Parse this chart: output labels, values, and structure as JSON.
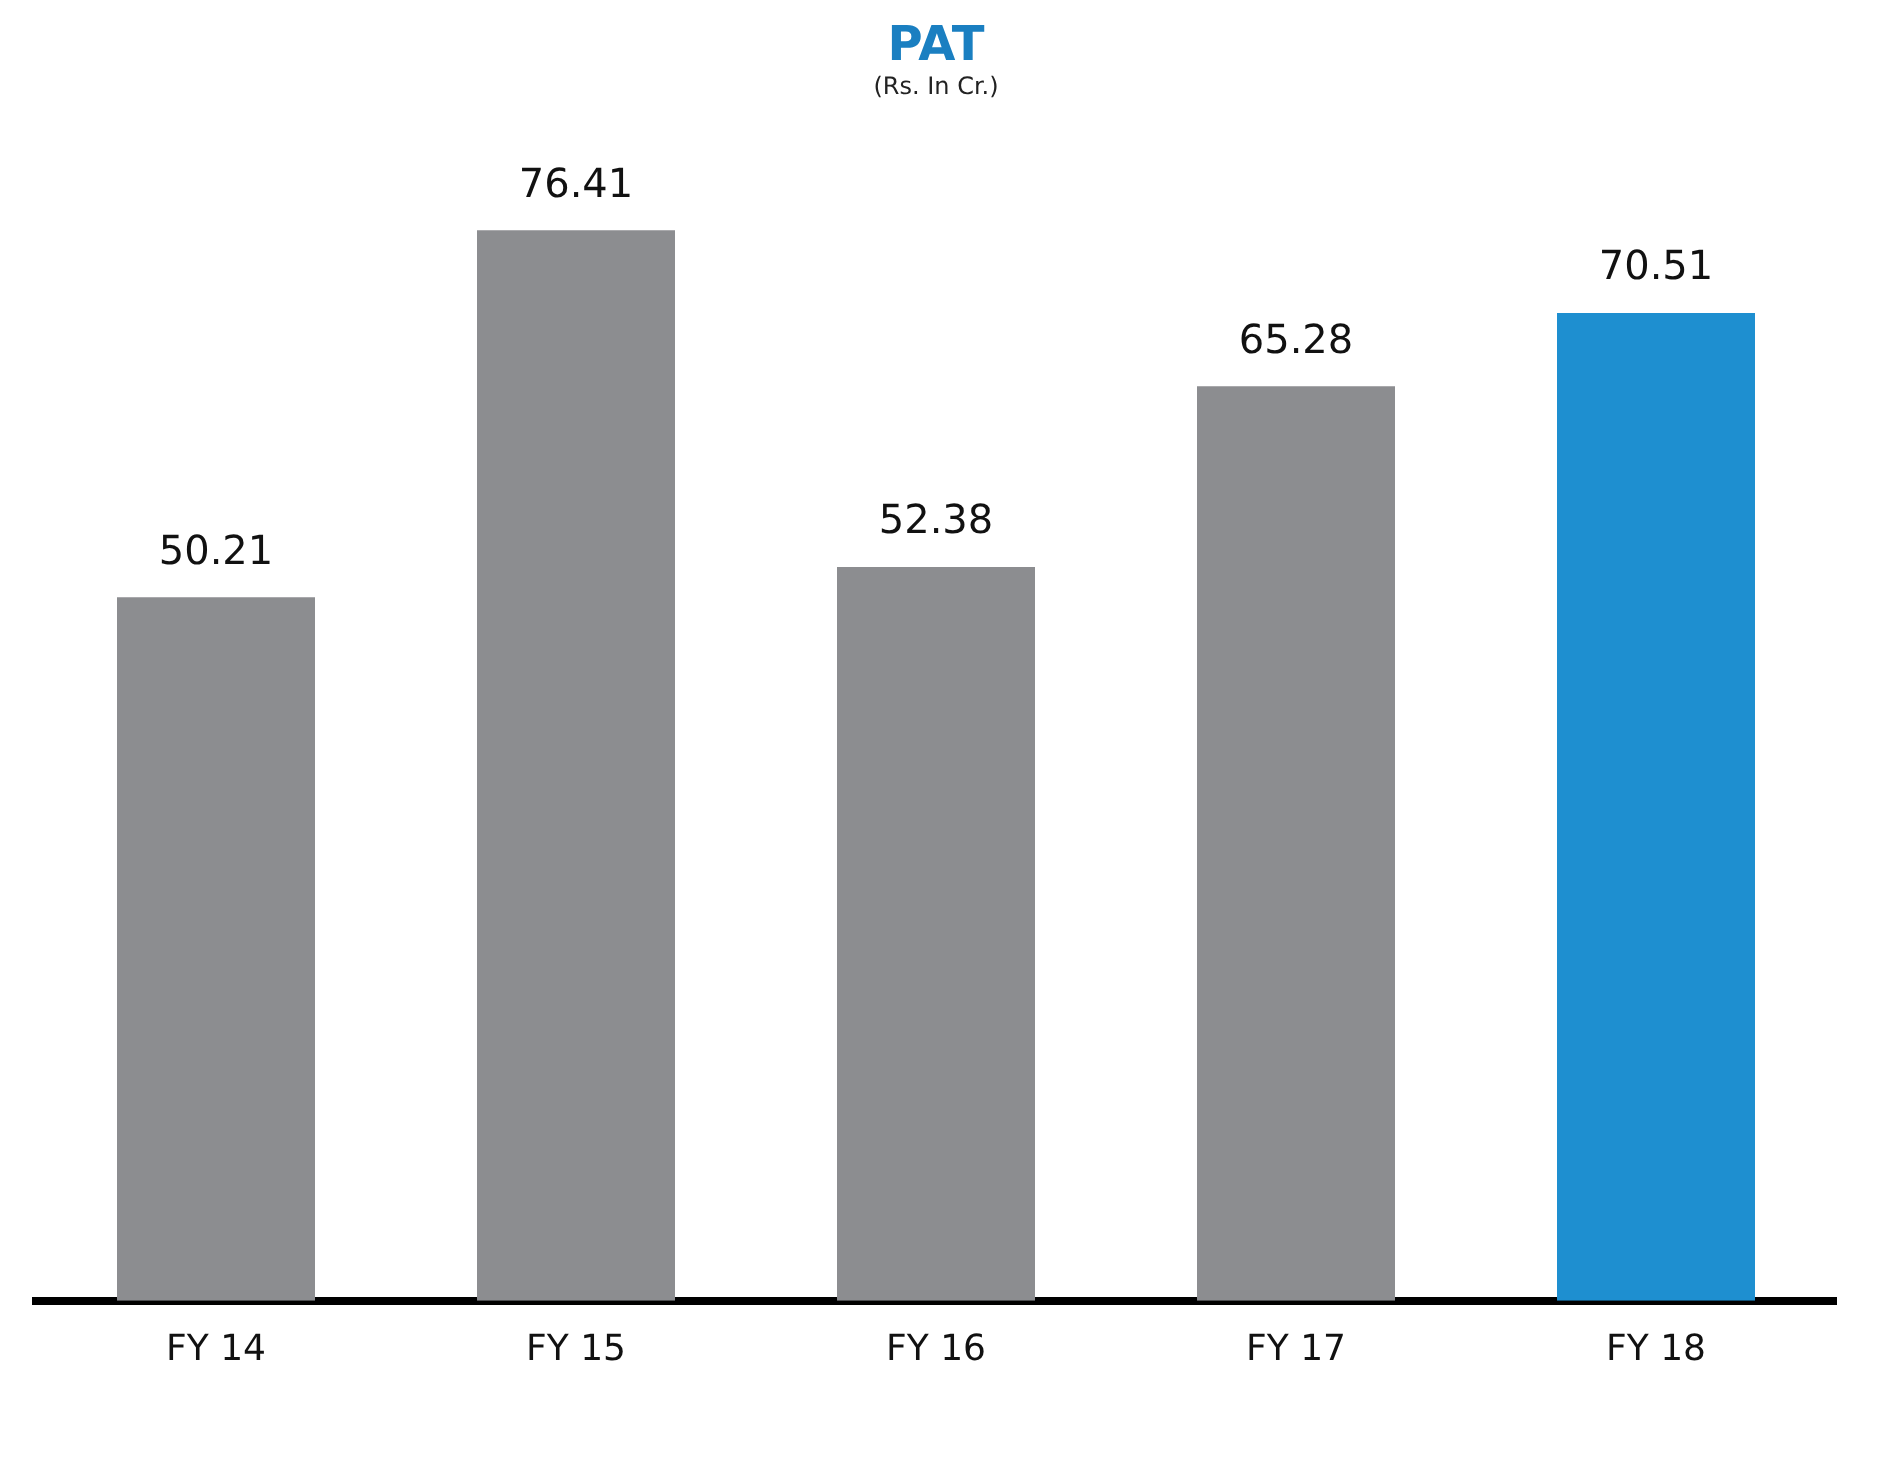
{
  "chart_data": {
    "type": "bar",
    "title": "PAT",
    "subtitle": "(Rs. In Cr.)",
    "categories": [
      "FY 14",
      "FY 15",
      "FY 16",
      "FY 17",
      "FY 18"
    ],
    "values": [
      50.21,
      76.41,
      52.38,
      65.28,
      70.51
    ],
    "colors": [
      "#8c8d90",
      "#8c8d90",
      "#8c8d90",
      "#8c8d90",
      "#1e8fd0"
    ],
    "data_labels": true,
    "grid": false,
    "legend": false
  }
}
